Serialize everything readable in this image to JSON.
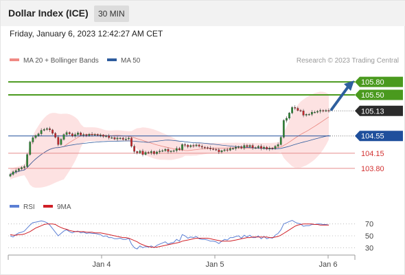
{
  "header": {
    "title": "Dollar Index (ICE)",
    "timeframe": "30 MIN"
  },
  "datetime": "Friday, January 6, 2023 12:42:27 AM CET",
  "colors": {
    "bb_fill": "#fde2e2",
    "ma20": "#e8837b",
    "ma50": "#2e5c9e",
    "resistance": "#4a9a1e",
    "pivot": "#1f4f9c",
    "support": "#e58b8b",
    "candle_up": "#2f8a36",
    "candle_down": "#c8262b",
    "rsi": "#5b7fd4",
    "rsi_ma": "#d01f26",
    "arrow": "#2e5f9e"
  },
  "chart_data": [
    {
      "type": "candlestick",
      "legend": [
        {
          "name": "MA 20 + Bollinger Bands",
          "color": "#f08a84"
        },
        {
          "name": "MA 50",
          "color": "#2e5c9e"
        }
      ],
      "credit": "Research © 2023 Trading Central",
      "ylim": [
        103.48,
        106.12
      ],
      "x_labels": [
        "Jan 4",
        "Jan 5",
        "Jan 6"
      ],
      "closes": [
        103.66,
        103.72,
        103.75,
        103.79,
        103.82,
        103.84,
        104.12,
        104.41,
        104.51,
        104.56,
        104.6,
        104.68,
        104.7,
        104.72,
        104.69,
        104.61,
        104.52,
        104.35,
        104.47,
        104.58,
        104.63,
        104.6,
        104.55,
        104.58,
        104.62,
        104.57,
        104.58,
        104.56,
        104.59,
        104.58,
        104.58,
        104.57,
        104.57,
        104.54,
        104.55,
        104.51,
        104.51,
        104.48,
        104.5,
        104.5,
        104.47,
        104.48,
        104.5,
        104.31,
        104.19,
        104.16,
        104.2,
        104.12,
        104.17,
        104.16,
        104.19,
        104.14,
        104.18,
        104.2,
        104.21,
        104.24,
        104.19,
        104.2,
        104.21,
        104.26,
        104.23,
        104.35,
        104.34,
        104.3,
        104.33,
        104.32,
        104.34,
        104.31,
        104.29,
        104.28,
        104.27,
        104.25,
        104.24,
        104.23,
        104.18,
        104.21,
        104.23,
        104.22,
        104.26,
        104.26,
        104.29,
        104.3,
        104.27,
        104.33,
        104.3,
        104.33,
        104.28,
        104.28,
        104.31,
        104.26,
        104.29,
        104.25,
        104.27,
        104.26,
        104.31,
        104.35,
        104.52,
        104.91,
        104.96,
        105.08,
        105.21,
        105.19,
        105.14,
        105.13,
        105.03,
        105.05,
        105.05,
        105.1,
        105.1,
        105.12,
        105.14,
        105.13,
        105.14,
        105.13
      ],
      "levels": [
        {
          "value": 105.8,
          "label": "105.80",
          "kind": "resistance",
          "strong": true
        },
        {
          "value": 105.5,
          "label": "105.50",
          "kind": "resistance",
          "strong": true
        },
        {
          "value": 105.13,
          "label": "105.13",
          "kind": "last"
        },
        {
          "value": 104.55,
          "label": "104.55",
          "kind": "pivot"
        },
        {
          "value": 104.15,
          "label": "104.15",
          "kind": "support"
        },
        {
          "value": 103.8,
          "label": "103.80",
          "kind": "support"
        }
      ],
      "arrow": {
        "from": 105.13,
        "to": 105.8,
        "direction": "up"
      }
    },
    {
      "type": "line",
      "legend": [
        {
          "name": "RSI",
          "color": "#5b7fd4"
        },
        {
          "name": "9MA",
          "color": "#d01f26"
        }
      ],
      "ylim": [
        20,
        80
      ],
      "y_ticks": [
        70,
        50,
        30
      ],
      "series": [
        {
          "name": "RSI",
          "values": [
            50,
            48,
            52,
            55,
            56,
            58,
            63,
            68,
            72,
            73,
            74,
            75,
            74,
            72,
            68,
            62,
            56,
            50,
            54,
            58,
            60,
            57,
            55,
            57,
            58,
            55,
            56,
            54,
            55,
            54,
            54,
            53,
            52,
            49,
            50,
            47,
            47,
            45,
            45,
            46,
            44,
            44,
            46,
            36,
            30,
            28,
            33,
            30,
            32,
            31,
            33,
            30,
            34,
            36,
            38,
            40,
            36,
            38,
            39,
            44,
            41,
            52,
            50,
            46,
            48,
            47,
            49,
            45,
            44,
            44,
            43,
            41,
            41,
            40,
            37,
            41,
            44,
            43,
            47,
            47,
            49,
            50,
            46,
            51,
            48,
            51,
            47,
            47,
            50,
            45,
            49,
            45,
            47,
            46,
            51,
            54,
            60,
            70,
            72,
            74,
            76,
            73,
            71,
            70,
            66,
            67,
            67,
            69,
            69,
            70,
            70,
            69,
            69,
            68
          ]
        },
        {
          "name": "9MA",
          "values": [
            52,
            51,
            51,
            52,
            52,
            53,
            55,
            57,
            60,
            63,
            65,
            67,
            69,
            70,
            70,
            70,
            69,
            66,
            64,
            62,
            61,
            59,
            58,
            57,
            57,
            57,
            57,
            56,
            56,
            56,
            55,
            55,
            55,
            54,
            53,
            52,
            51,
            50,
            49,
            48,
            47,
            47,
            46,
            44,
            42,
            40,
            37,
            35,
            33,
            32,
            31,
            31,
            31,
            32,
            33,
            34,
            35,
            36,
            37,
            38,
            39,
            41,
            42,
            43,
            44,
            45,
            46,
            46,
            46,
            46,
            46,
            45,
            44,
            43,
            42,
            41,
            41,
            41,
            41,
            42,
            43,
            44,
            45,
            46,
            47,
            47,
            48,
            48,
            48,
            48,
            48,
            48,
            47,
            47,
            48,
            49,
            51,
            54,
            57,
            60,
            63,
            66,
            68,
            69,
            70,
            70,
            70,
            70,
            69,
            69,
            68,
            68,
            68,
            68
          ]
        }
      ]
    }
  ]
}
